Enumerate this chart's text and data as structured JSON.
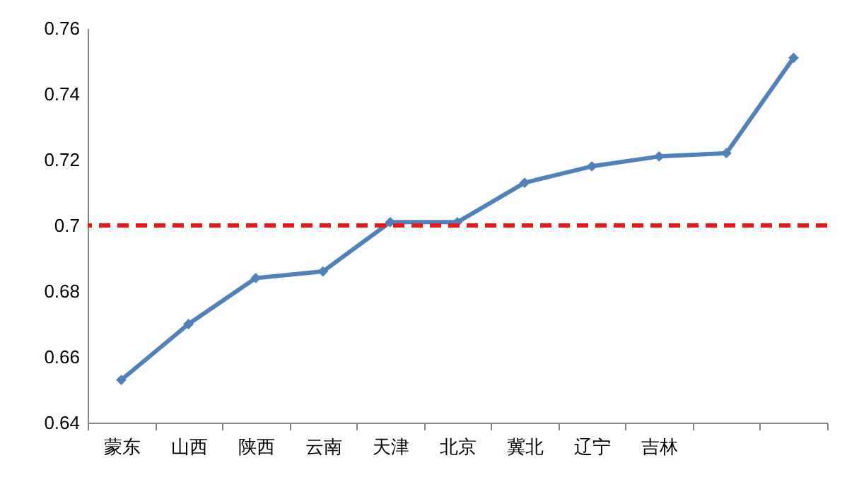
{
  "chart_data": {
    "type": "line",
    "categories": [
      "蒙东",
      "山西",
      "陕西",
      "云南",
      "天津",
      "北京",
      "冀北",
      "辽宁",
      "吉林",
      null,
      null
    ],
    "series": [
      {
        "color": "#4f81bd",
        "values": [
          0.653,
          0.67,
          0.684,
          0.686,
          0.701,
          0.701,
          0.713,
          0.718,
          0.721,
          0.722,
          0.751
        ]
      }
    ],
    "ylim": [
      0.64,
      0.76
    ],
    "yticks": [
      0.64,
      0.66,
      0.68,
      0.7,
      0.72,
      0.74,
      0.76
    ],
    "grid": false,
    "marker": "diamond",
    "line_style": "solid",
    "ref_lines": [
      {
        "axis": "y",
        "value": 0.7,
        "color": "#e41a1c",
        "line_style": "dashed"
      }
    ]
  }
}
